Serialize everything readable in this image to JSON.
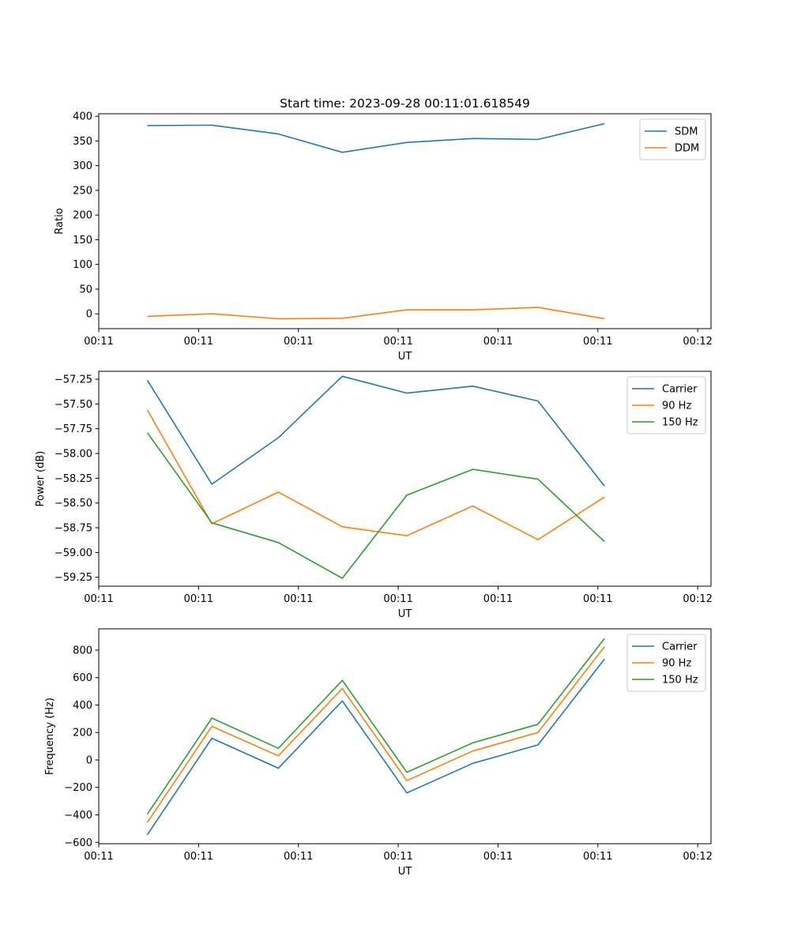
{
  "chart_data": [
    {
      "type": "line",
      "title": "Start time: 2023-09-28 00:11:01.618549",
      "xlabel": "UT",
      "ylabel": "Ratio",
      "xlim": [
        0,
        9.2
      ],
      "ylim": [
        -30,
        405
      ],
      "x_ticks": [
        0,
        1.5,
        3,
        4.5,
        6,
        7.5,
        9
      ],
      "x_tick_labels": [
        "00:11",
        "00:11",
        "00:11",
        "00:11",
        "00:11",
        "00:11",
        "00:12"
      ],
      "y_ticks": [
        0,
        50,
        100,
        150,
        200,
        250,
        300,
        350,
        400
      ],
      "y_tick_labels": [
        "0",
        "50",
        "100",
        "150",
        "200",
        "250",
        "300",
        "350",
        "400"
      ],
      "legend_position": "top-right",
      "x": [
        0.73,
        1.7,
        2.7,
        3.66,
        4.63,
        5.62,
        6.6,
        7.6
      ],
      "series": [
        {
          "name": "SDM",
          "color": "#1f77b4",
          "values": [
            381,
            382,
            364,
            327,
            347,
            355,
            353,
            385
          ]
        },
        {
          "name": "DDM",
          "color": "#ff7f0e",
          "values": [
            -5,
            0,
            -10,
            -9,
            8,
            8,
            13,
            -10
          ]
        }
      ]
    },
    {
      "type": "line",
      "title": "",
      "xlabel": "UT",
      "ylabel": "Power (dB)",
      "xlim": [
        0,
        9.2
      ],
      "ylim": [
        -59.34,
        -57.17
      ],
      "x_ticks": [
        0,
        1.5,
        3,
        4.5,
        6,
        7.5,
        9
      ],
      "x_tick_labels": [
        "00:11",
        "00:11",
        "00:11",
        "00:11",
        "00:11",
        "00:11",
        "00:12"
      ],
      "y_ticks": [
        -59.25,
        -59.0,
        -58.75,
        -58.5,
        -58.25,
        -58.0,
        -57.75,
        -57.5,
        -57.25
      ],
      "y_tick_labels": [
        "−59.25",
        "−59.00",
        "−58.75",
        "−58.50",
        "−58.25",
        "−58.00",
        "−57.75",
        "−57.50",
        "−57.25"
      ],
      "legend_position": "top-right",
      "x": [
        0.73,
        1.7,
        2.7,
        3.66,
        4.63,
        5.62,
        6.6,
        7.6
      ],
      "series": [
        {
          "name": "Carrier",
          "color": "#1f77b4",
          "values": [
            -57.26,
            -58.31,
            -57.84,
            -57.22,
            -57.39,
            -57.32,
            -57.47,
            -58.33
          ]
        },
        {
          "name": "90 Hz",
          "color": "#ff7f0e",
          "values": [
            -57.56,
            -58.71,
            -58.39,
            -58.74,
            -58.83,
            -58.53,
            -58.87,
            -58.44
          ]
        },
        {
          "name": "150 Hz",
          "color": "#2ca02c",
          "values": [
            -57.79,
            -58.7,
            -58.9,
            -59.26,
            -58.42,
            -58.16,
            -58.26,
            -58.89
          ]
        }
      ]
    },
    {
      "type": "line",
      "title": "",
      "xlabel": "UT",
      "ylabel": "Frequency (Hz)",
      "xlim": [
        0,
        9.2
      ],
      "ylim": [
        -610,
        955
      ],
      "x_ticks": [
        0,
        1.5,
        3,
        4.5,
        6,
        7.5,
        9
      ],
      "x_tick_labels": [
        "00:11",
        "00:11",
        "00:11",
        "00:11",
        "00:11",
        "00:11",
        "00:12"
      ],
      "y_ticks": [
        -600,
        -400,
        -200,
        0,
        200,
        400,
        600,
        800
      ],
      "y_tick_labels": [
        "−600",
        "−400",
        "−200",
        "0",
        "200",
        "400",
        "600",
        "800"
      ],
      "legend_position": "top-right",
      "x": [
        0.73,
        1.7,
        2.7,
        3.66,
        4.63,
        5.62,
        6.6,
        7.6
      ],
      "series": [
        {
          "name": "Carrier",
          "color": "#1f77b4",
          "values": [
            -545,
            158,
            -60,
            430,
            -240,
            -25,
            110,
            735
          ]
        },
        {
          "name": "90 Hz",
          "color": "#ff7f0e",
          "values": [
            -455,
            245,
            30,
            520,
            -150,
            65,
            200,
            825
          ]
        },
        {
          "name": "150 Hz",
          "color": "#2ca02c",
          "values": [
            -395,
            305,
            85,
            580,
            -90,
            125,
            260,
            885
          ]
        }
      ]
    }
  ]
}
